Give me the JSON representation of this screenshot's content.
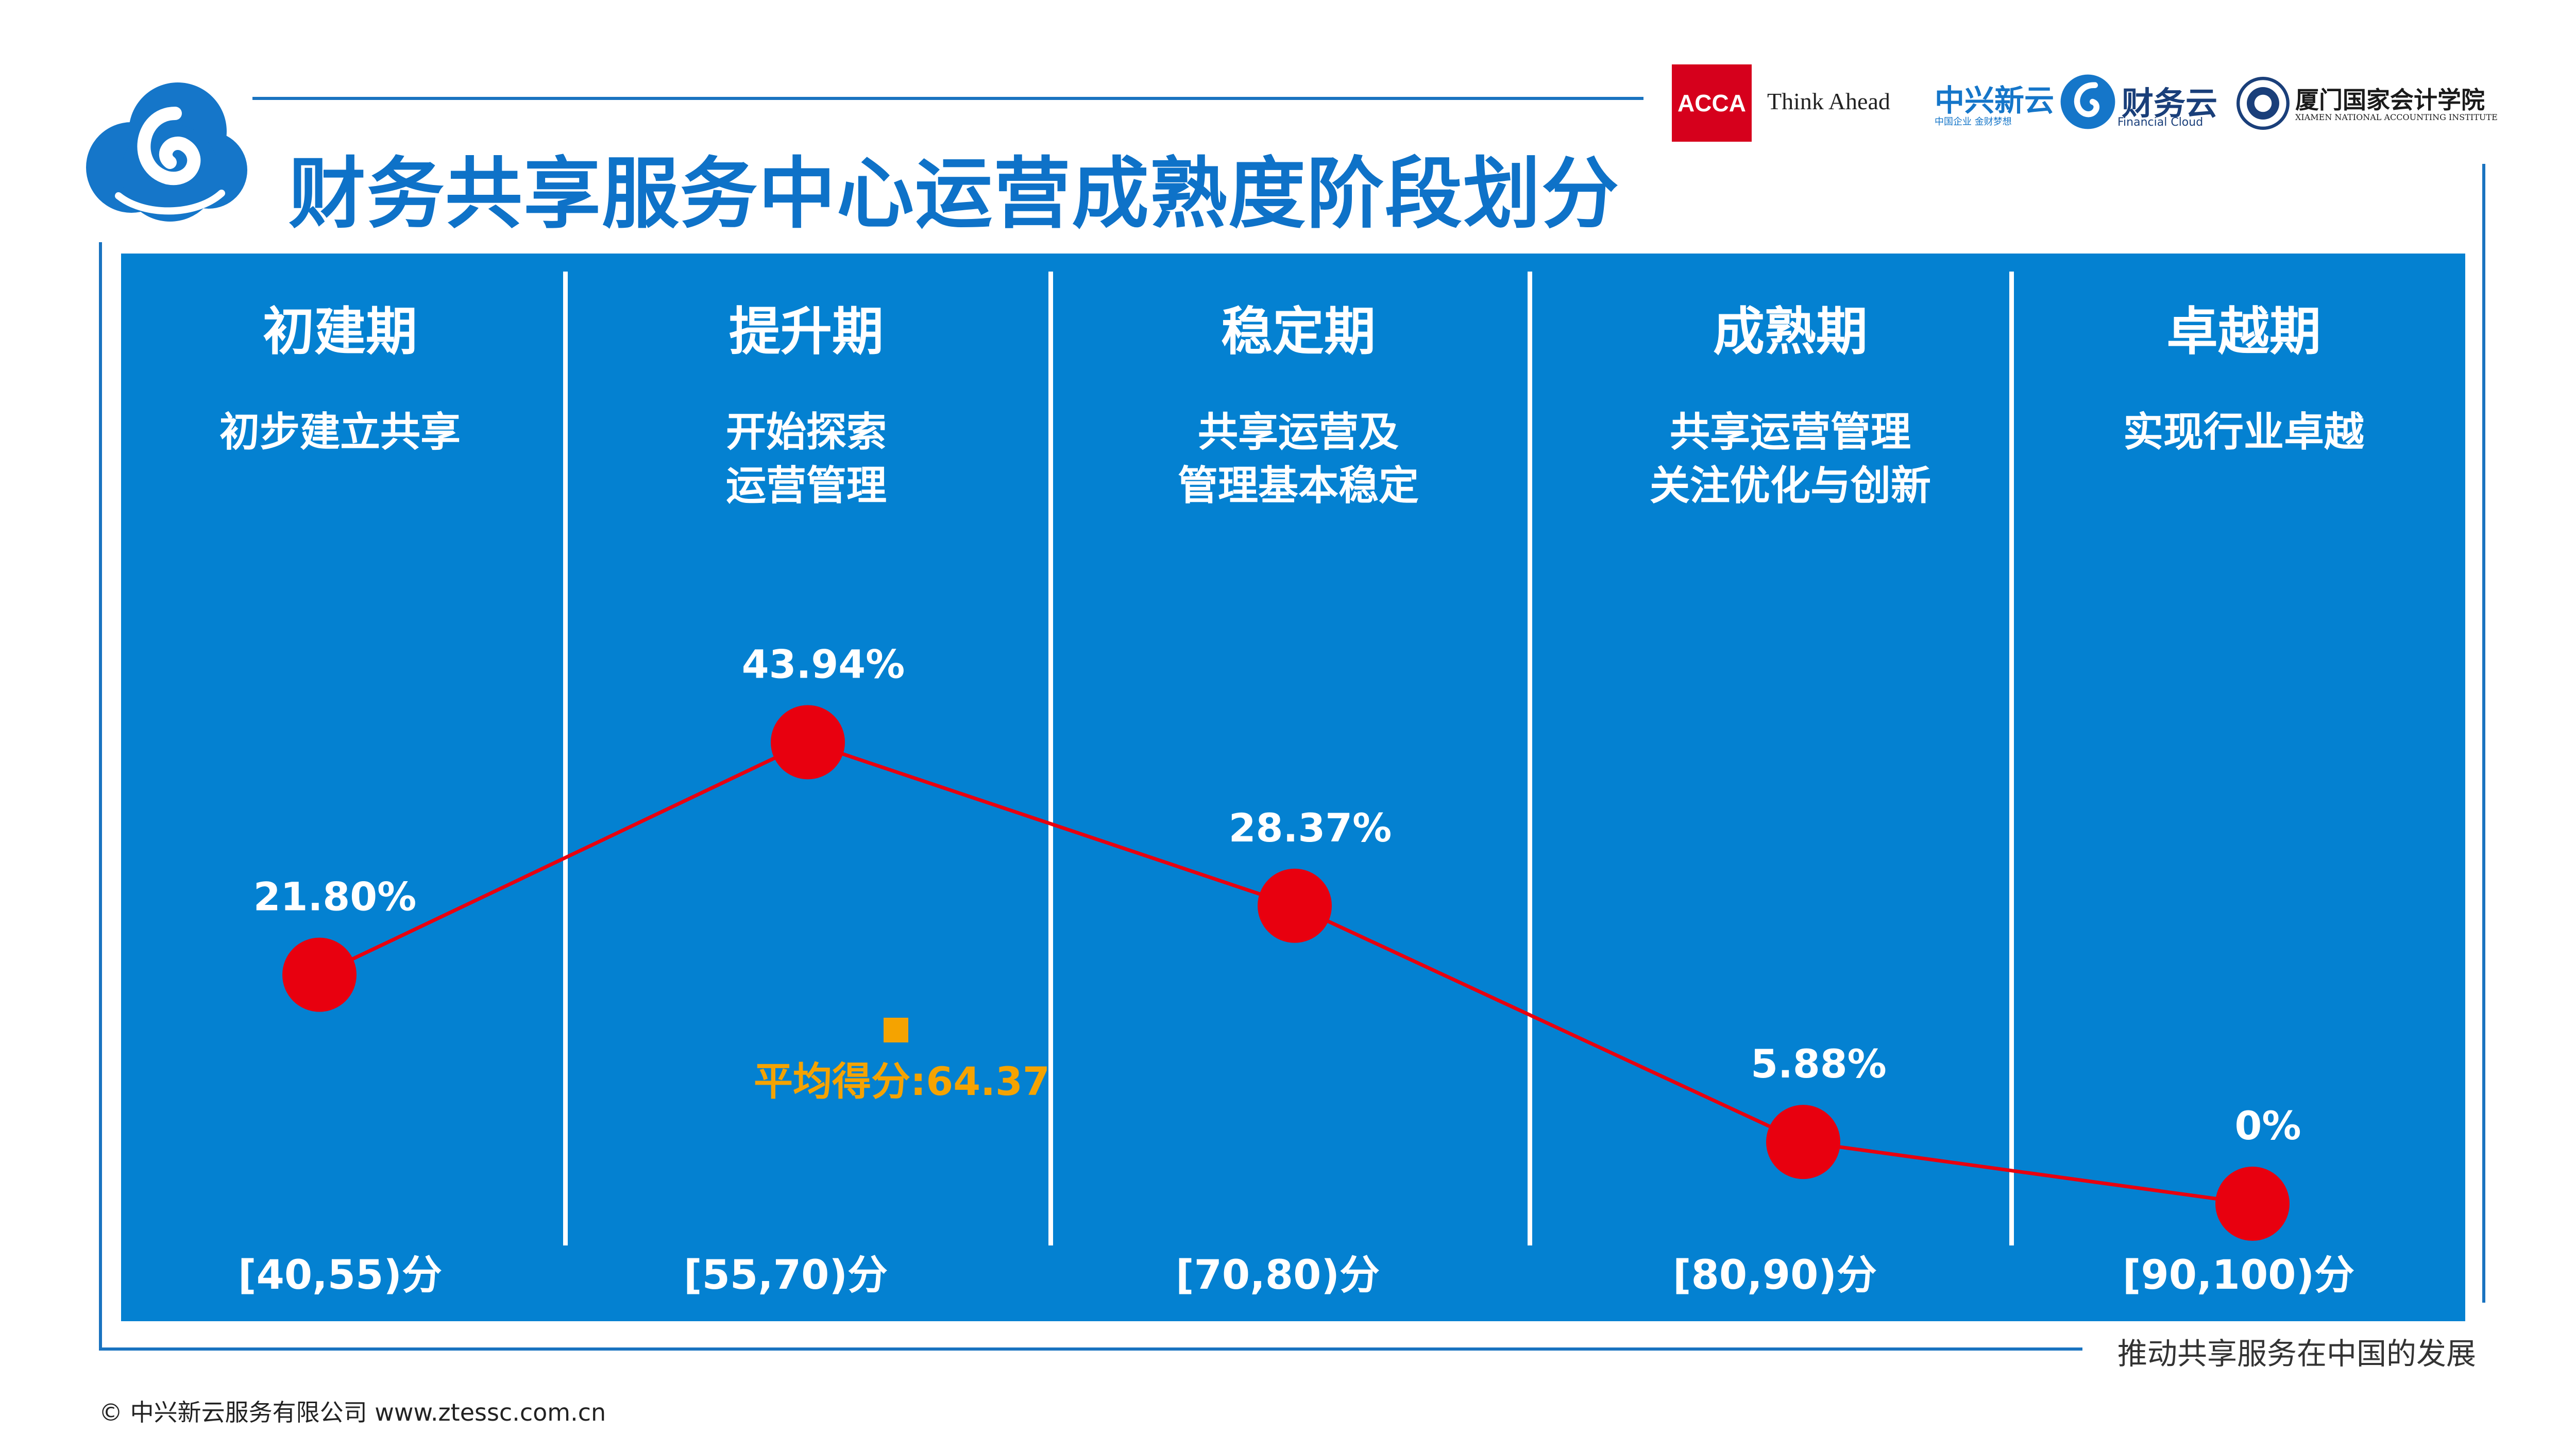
{
  "header": {
    "title": "财务共享服务中心运营成熟度阶段划分",
    "logos": {
      "acca_mark": "ACCA",
      "acca_tagline": "Think Ahead",
      "zhongxing_name": "中兴新云",
      "zhongxing_sub": "中国企业 金财梦想",
      "caiwuyun_name": "财务云",
      "caiwuyun_sub": "Financial Cloud",
      "xiamen_name": "厦门国家会计学院",
      "xiamen_sub": "XIAMEN NATIONAL ACCOUNTING INSTITUTE"
    }
  },
  "stages": [
    {
      "name": "初建期",
      "desc": [
        "初步建立共享"
      ],
      "range": "[40,55)分"
    },
    {
      "name": "提升期",
      "desc": [
        "开始探索",
        "运营管理"
      ],
      "range": "[55,70)分"
    },
    {
      "name": "稳定期",
      "desc": [
        "共享运营及",
        "管理基本稳定"
      ],
      "range": "[70,80)分"
    },
    {
      "name": "成熟期",
      "desc": [
        "共享运营管理",
        "关注优化与创新"
      ],
      "range": "[80,90)分"
    },
    {
      "name": "卓越期",
      "desc": [
        "实现行业卓越"
      ],
      "range": "[90,100)分"
    }
  ],
  "chart_data": {
    "type": "line",
    "categories": [
      "初建期",
      "提升期",
      "稳定期",
      "成熟期",
      "卓越期"
    ],
    "series": [
      {
        "values": [
          21.8,
          43.94,
          28.37,
          5.88,
          0
        ],
        "labels": [
          "21.80%",
          "43.94%",
          "28.37%",
          "5.88%",
          "0%"
        ]
      }
    ],
    "ylim": [
      0,
      50
    ],
    "grid": false,
    "line_color": "#e8000f",
    "marker_color": "#e8000f",
    "annotation": {
      "text": "平均得分:64.37",
      "value": 64.37,
      "color": "#f5a300"
    }
  },
  "footer": {
    "slogan": "推动共享服务在中国的发展",
    "copyright": "© 中兴新云服务有限公司  www.ztessc.com.cn"
  },
  "colors": {
    "brand": "#0e72c8",
    "panel": "#0481d1",
    "accent": "#f5a300",
    "series": "#e8000f"
  }
}
